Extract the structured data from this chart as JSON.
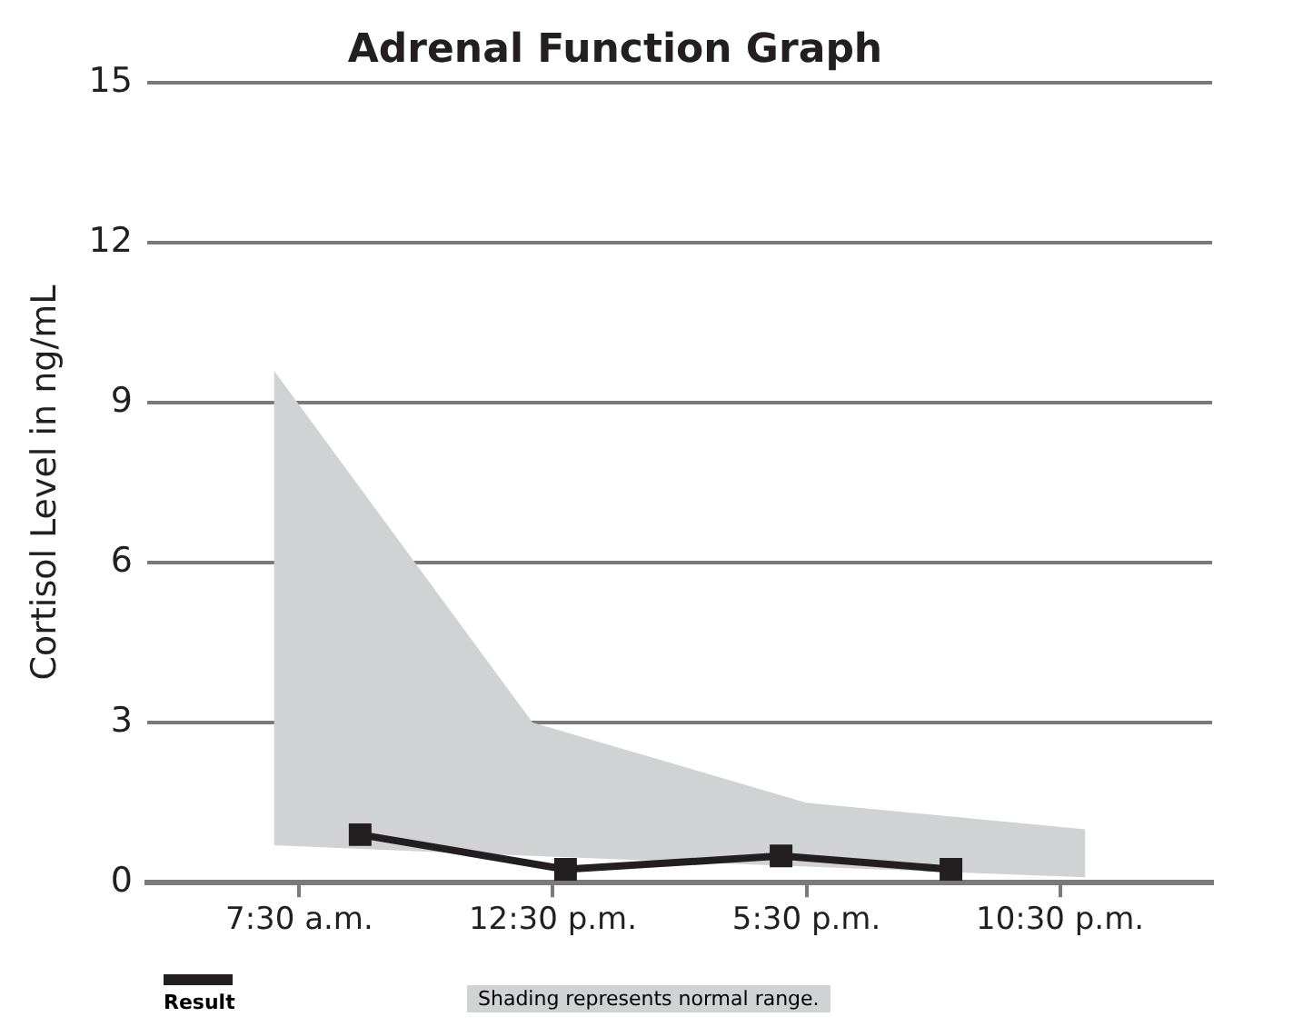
{
  "chart_data": {
    "type": "line",
    "title": "Adrenal Function Graph",
    "ylabel": "Cortisol Level in ng/mL",
    "xlim": [
      4.5,
      25.5
    ],
    "xticks": [
      {
        "value": 7.5,
        "label": "7:30 a.m."
      },
      {
        "value": 12.5,
        "label": "12:30 p.m."
      },
      {
        "value": 17.5,
        "label": "5:30 p.m."
      },
      {
        "value": 22.5,
        "label": "10:30 p.m."
      }
    ],
    "ylim": [
      0,
      15
    ],
    "yticks": [
      0,
      3,
      6,
      9,
      12,
      15
    ],
    "grid": "y",
    "legend": "bottom left",
    "marker": "square",
    "line_style": "solid",
    "series": [
      {
        "color": "#d1d2d4",
        "x": [
          7,
          12.1,
          17.5,
          23
        ],
        "values": [
          null,
          null,
          null,
          null
        ],
        "lower": [
          0.7,
          0.5,
          0.3,
          0.1
        ],
        "upper": [
          9.6,
          3,
          1.5,
          1
        ]
      },
      {
        "name": "Result",
        "color": "#231f20",
        "x": [
          8.7,
          12.75,
          17,
          20.35
        ],
        "values": [
          0.9,
          0.25,
          0.5,
          0.25
        ]
      }
    ],
    "annotations": [
      "Shading represents normal range."
    ]
  }
}
